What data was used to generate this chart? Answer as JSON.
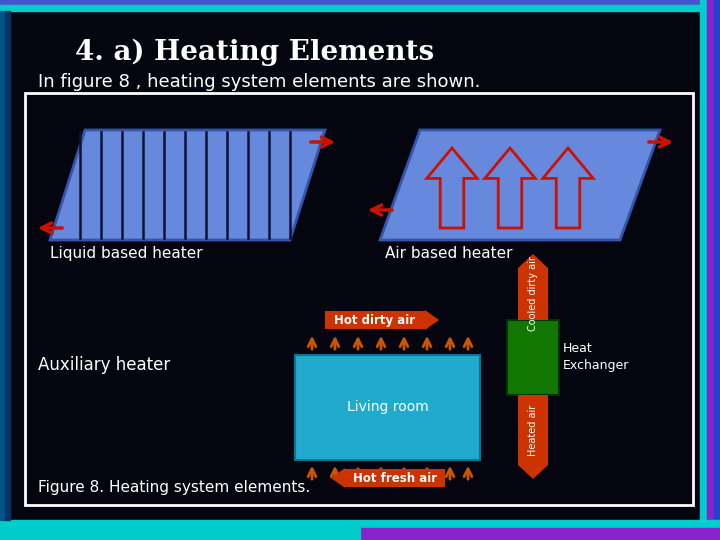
{
  "title": "4. a) Heating Elements",
  "subtitle": "In figure 8 , heating system elements are shown.",
  "fig_caption": "Figure 8. Heating system elements.",
  "label_liquid": "Liquid based heater",
  "label_air": "Air based heater",
  "label_auxiliary": "Auxiliary heater",
  "label_living_room": "Living room",
  "label_heat_exchanger": "Heat\nExchanger",
  "label_hot_dirty": "Hot dirty air",
  "label_hot_fresh": "Hot fresh air",
  "label_cooled": "Cooled dirty air",
  "label_heated": "Heated air",
  "bg_color": "#050510",
  "title_color": "#ffffff",
  "blue_heater_color": "#6688dd",
  "blue_heater_edge": "#3355aa",
  "cyan_room_color": "#22aacc",
  "orange_arrow_color": "#cc5500",
  "red_arrow_color": "#cc1100",
  "green_he_color": "#117700",
  "border_color": "#ffffff",
  "top_bar_color": "#4466ff",
  "top_bar2_color": "#00cccc",
  "right_bar1": "#00cccc",
  "right_bar2": "#8822cc",
  "right_bar3": "#2244cc",
  "bottom_bar1": "#00cccc",
  "bottom_bar2": "#8822cc"
}
